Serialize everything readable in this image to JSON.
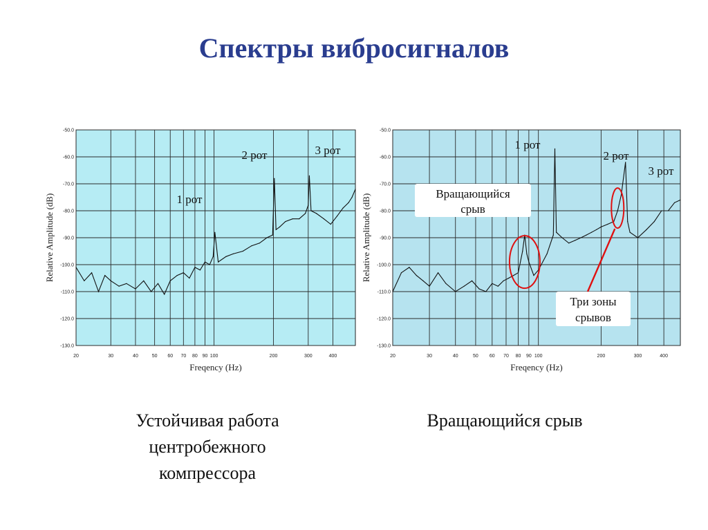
{
  "title": "Спектры вибросигналов",
  "captions": {
    "left": [
      "Устойчивая работа",
      "центробежного",
      "компрессора"
    ],
    "right": [
      "Вращающийся срыв"
    ]
  },
  "colors": {
    "title": "#2a3d8f",
    "plot_bg_left": "#b6ecf4",
    "plot_bg_right": "#b6e3ef",
    "grid": "#2b2b2b",
    "signal": "#111111",
    "highlight": "#e01010"
  },
  "chart_data": [
    {
      "type": "line",
      "title": "",
      "xlabel": "Freqency (Hz)",
      "ylabel": "Relative Amplitude (dB)",
      "xscale": "log",
      "xlim": [
        20,
        520
      ],
      "ylim": [
        -130,
        -50
      ],
      "x_ticks": [
        20,
        30,
        40,
        50,
        60,
        70,
        80,
        90,
        100,
        200,
        300,
        400
      ],
      "x_tick_labels": [
        "20",
        "30",
        "40",
        "50",
        "60",
        "70",
        "80",
        "90",
        "100",
        "200",
        "300",
        "400"
      ],
      "y_ticks": [
        -50,
        -60,
        -70,
        -80,
        -90,
        -100,
        -110,
        -120,
        -130
      ],
      "y_tick_labels": [
        "-50.0",
        "-60.0",
        "-70.0",
        "-80.0",
        "-90.0",
        "-100.0",
        "-110.0",
        "-120.0",
        "-130.0"
      ],
      "grid": true,
      "series": [
        {
          "x": [
            20,
            22,
            24,
            26,
            28,
            30,
            33,
            36,
            40,
            44,
            48,
            52,
            56,
            60,
            65,
            70,
            75,
            80,
            85,
            90,
            95,
            99,
            101,
            105,
            115,
            125,
            140,
            155,
            170,
            185,
            198,
            202,
            206,
            215,
            230,
            250,
            270,
            290,
            300,
            304,
            310,
            330,
            360,
            390,
            420,
            450,
            480,
            500,
            520
          ],
          "y": [
            -101,
            -106,
            -103,
            -110,
            -104,
            -106,
            -108,
            -107,
            -109,
            -106,
            -110,
            -107,
            -111,
            -106,
            -104,
            -103,
            -105,
            -101,
            -102,
            -99,
            -100,
            -97,
            -88,
            -99,
            -97,
            -96,
            -95,
            -93,
            -92,
            -90,
            -89,
            -68,
            -87,
            -86,
            -84,
            -83,
            -83,
            -81,
            -78,
            -67,
            -80,
            -81,
            -83,
            -85,
            -82,
            -79,
            -77,
            -75,
            -72
          ]
        }
      ],
      "annotations": [
        {
          "text": "1 рот",
          "x": 100,
          "y": -88
        },
        {
          "text": "2 рот",
          "x": 202,
          "y": -67
        },
        {
          "text": "3 рот",
          "x": 304,
          "y": -66
        }
      ]
    },
    {
      "type": "line",
      "title": "",
      "xlabel": "Freqency (Hz)",
      "ylabel": "Relative Amplitude (dB)",
      "xscale": "log",
      "xlim": [
        20,
        480
      ],
      "ylim": [
        -130,
        -50
      ],
      "x_ticks": [
        20,
        30,
        40,
        50,
        60,
        70,
        80,
        90,
        100,
        200,
        300,
        400
      ],
      "x_tick_labels": [
        "20",
        "30",
        "40",
        "50",
        "60",
        "70",
        "80",
        "90",
        "100",
        "200",
        "300",
        "400"
      ],
      "y_ticks": [
        -50,
        -60,
        -70,
        -80,
        -90,
        -100,
        -110,
        -120,
        -130
      ],
      "y_tick_labels": [
        "-50.0",
        "-60.0",
        "-70.0",
        "-80.0",
        "-90.0",
        "-100.0",
        "-110.0",
        "-120.0",
        "-130.0"
      ],
      "grid": true,
      "series": [
        {
          "x": [
            20,
            22,
            24,
            26,
            28,
            30,
            33,
            36,
            40,
            44,
            48,
            52,
            56,
            60,
            64,
            68,
            72,
            76,
            80,
            84,
            86,
            88,
            90,
            95,
            100,
            110,
            118,
            120,
            122,
            130,
            140,
            150,
            160,
            170,
            180,
            190,
            200,
            215,
            230,
            240,
            250,
            262,
            268,
            275,
            300,
            330,
            360,
            390,
            420,
            450,
            480
          ],
          "y": [
            -110,
            -103,
            -101,
            -104,
            -106,
            -108,
            -103,
            -107,
            -110,
            -108,
            -106,
            -109,
            -110,
            -107,
            -108,
            -106,
            -105,
            -104,
            -103,
            -95,
            -89,
            -96,
            -99,
            -104,
            -102,
            -96,
            -89,
            -57,
            -88,
            -90,
            -92,
            -91,
            -90,
            -89,
            -88,
            -87,
            -86,
            -85,
            -84,
            -80,
            -74,
            -62,
            -84,
            -88,
            -90,
            -87,
            -84,
            -80,
            -80,
            -77,
            -76
          ]
        }
      ],
      "annotations": [
        {
          "text": "1 рот",
          "x": 120,
          "y": -57
        },
        {
          "text": "2 рот",
          "x": 262,
          "y": -62
        },
        {
          "text": "3 рот",
          "x": 350,
          "y": -75
        },
        {
          "text": "Вращающийся срыв",
          "x": 86,
          "y": -89
        },
        {
          "text": "Три зоны срывов",
          "x": 240,
          "y": -80
        }
      ]
    }
  ]
}
